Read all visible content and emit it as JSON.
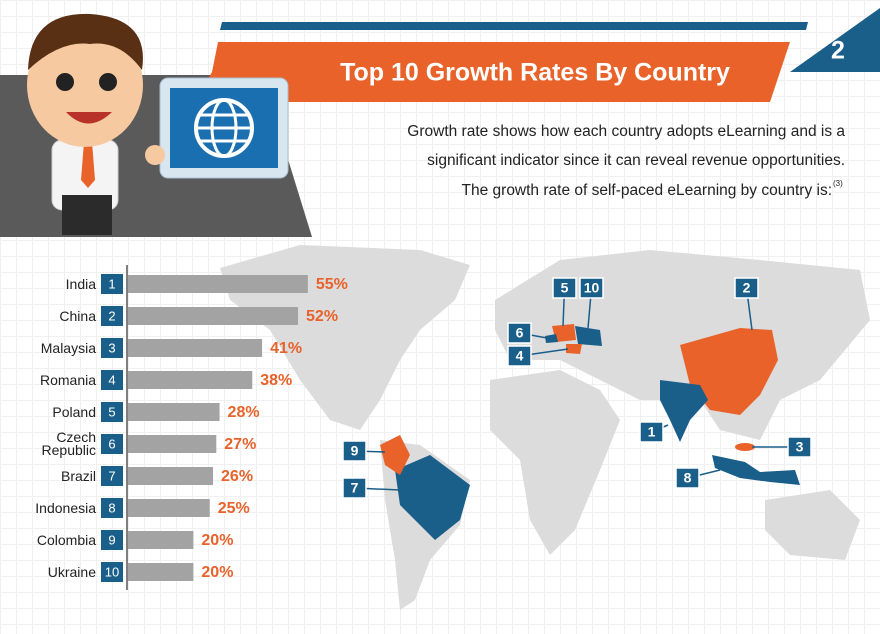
{
  "chart_data": {
    "type": "bar",
    "orientation": "horizontal",
    "title": "Top 10 Growth Rates By Country",
    "section": 2,
    "subtitle": [
      "Growth rate shows how each country adopts eLearning and is a",
      "significant indicator since it can reveal revenue opportunities.",
      "The growth rate of self-paced eLearning by country is:"
    ],
    "footnote": "(3)",
    "categories": [
      "India",
      "China",
      "Malaysia",
      "Romania",
      "Poland",
      "Czech Republic",
      "Brazil",
      "Indonesia",
      "Colombia",
      "Ukraine"
    ],
    "ranks": [
      1,
      2,
      3,
      4,
      5,
      6,
      7,
      8,
      9,
      10
    ],
    "values": [
      55,
      52,
      41,
      38,
      28,
      27,
      26,
      25,
      20,
      20
    ],
    "value_labels": [
      "55%",
      "52%",
      "41%",
      "38%",
      "28%",
      "27%",
      "26%",
      "25%",
      "20%",
      "20%"
    ],
    "color": "#a3a3a3",
    "label_color": "#e8622a",
    "rank_color": "#1a5e8a"
  }
}
